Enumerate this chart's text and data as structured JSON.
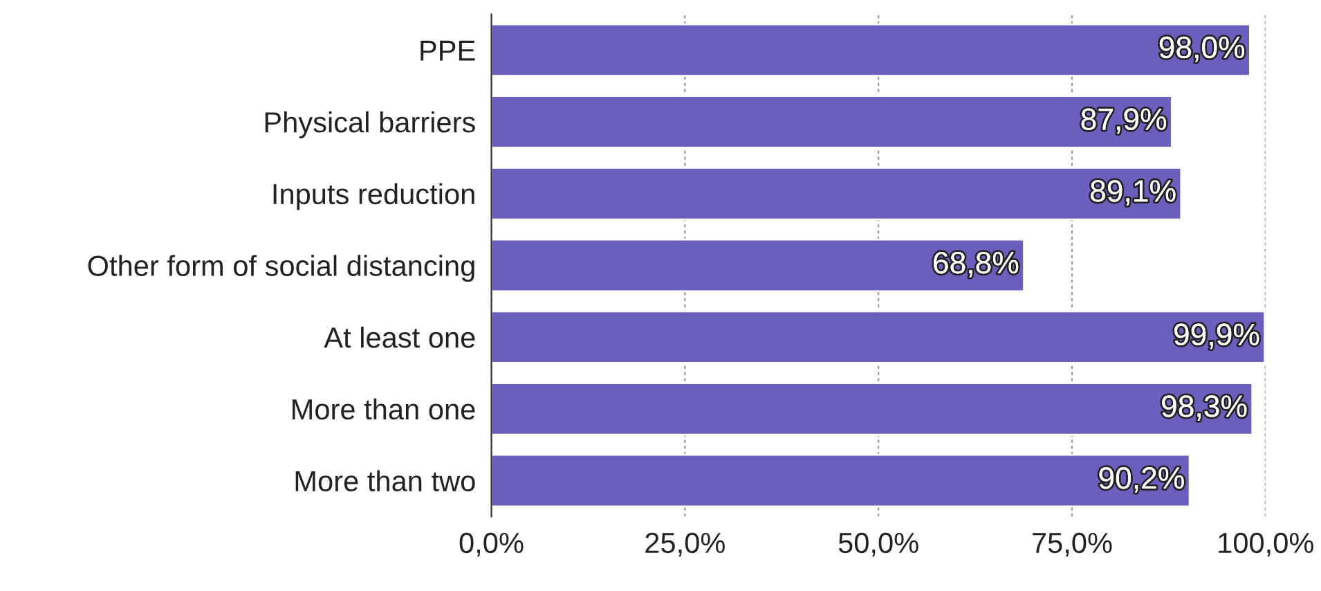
{
  "chart_data": {
    "type": "bar",
    "orientation": "horizontal",
    "categories": [
      "PPE",
      "Physical barriers",
      "Inputs reduction",
      "Other form of social distancing",
      "At least one",
      "More than one",
      "More than two"
    ],
    "values": [
      98.0,
      87.9,
      89.1,
      68.8,
      99.9,
      98.3,
      90.2
    ],
    "value_labels": [
      "98,0%",
      "87,9%",
      "89,1%",
      "68,8%",
      "99,9%",
      "98,3%",
      "90,2%"
    ],
    "color": "#6a5fbd",
    "xlim": [
      0,
      100
    ],
    "xticks": [
      {
        "value": 0,
        "label": "0,0%"
      },
      {
        "value": 25,
        "label": "25,0%"
      },
      {
        "value": 50,
        "label": "50,0%"
      },
      {
        "value": 75,
        "label": "75,0%"
      },
      {
        "value": 100,
        "label": "100,0%"
      }
    ],
    "grid": "x",
    "legend": false
  }
}
